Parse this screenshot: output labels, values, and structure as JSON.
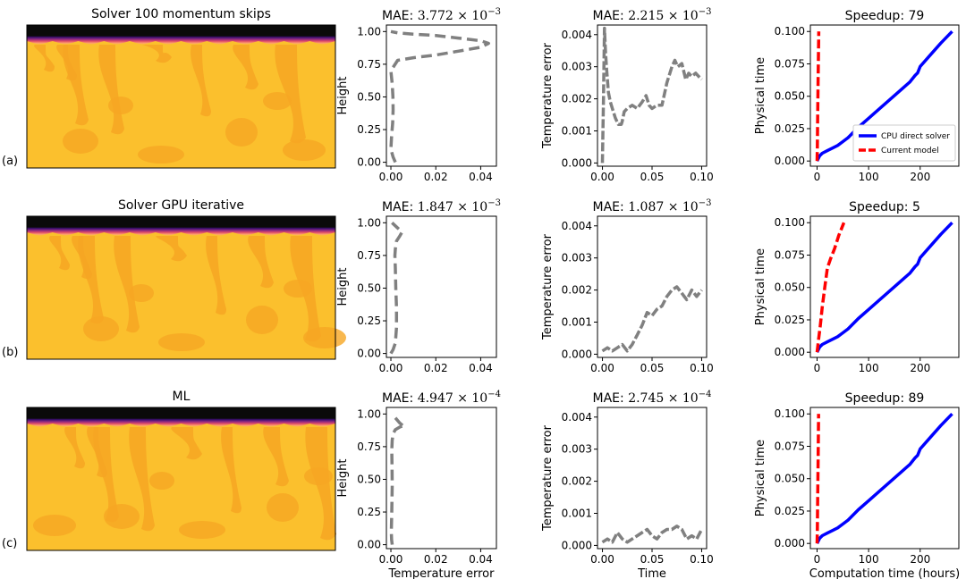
{
  "rows": [
    {
      "label": "(a)",
      "sim_title": "Solver 100 momentum skips",
      "height_panel": {
        "mae_prefix": "MAE: ",
        "mae_value": "3.772 × 10",
        "mae_exp": "−3"
      },
      "time_panel": {
        "mae_prefix": "MAE: ",
        "mae_value": "2.215 × 10",
        "mae_exp": "−3"
      },
      "speed_panel": {
        "title": "Speedup: 79"
      }
    },
    {
      "label": "(b)",
      "sim_title": "Solver GPU iterative",
      "height_panel": {
        "mae_prefix": "MAE: ",
        "mae_value": "1.847 × 10",
        "mae_exp": "−3"
      },
      "time_panel": {
        "mae_prefix": "MAE: ",
        "mae_value": "1.087 × 10",
        "mae_exp": "−3"
      },
      "speed_panel": {
        "title": "Speedup: 5"
      }
    },
    {
      "label": "(c)",
      "sim_title": "ML",
      "height_panel": {
        "mae_prefix": "MAE: ",
        "mae_value": "4.947 × 10",
        "mae_exp": "−4"
      },
      "time_panel": {
        "mae_prefix": "MAE: ",
        "mae_value": "2.745 × 10",
        "mae_exp": "−4"
      },
      "speed_panel": {
        "title": "Speedup: 89"
      }
    }
  ],
  "axis_labels": {
    "height_ylabel": "Height",
    "height_xlabel": "Temperature error",
    "time_ylabel": "Temperature error",
    "time_xlabel": "Time",
    "speed_ylabel": "Physical time",
    "speed_xlabel": "Computation time (hours)"
  },
  "legend": {
    "cpu": "CPU direct solver",
    "model": "Current model"
  },
  "colors": {
    "field_base": "#fbc02d",
    "field_plume": "#f6a623",
    "lid": "#0a0a0a",
    "error_curve": "#808080",
    "cpu_curve": "#0000ff",
    "model_curve": "#ff0000"
  },
  "chart_data": [
    {
      "type": "line",
      "panel": "height-profile",
      "xlabel": "Temperature error",
      "ylabel": "Height",
      "xlim": [
        -0.002,
        0.047
      ],
      "ylim": [
        -0.03,
        1.05
      ],
      "xticks": [
        "0.00",
        "0.02",
        "0.04"
      ],
      "xtick_values": [
        0,
        0.02,
        0.04
      ],
      "yticks": [
        "0.00",
        "0.25",
        "0.50",
        "0.75",
        "1.00"
      ],
      "ytick_values": [
        0,
        0.25,
        0.5,
        0.75,
        1.0
      ],
      "series": [
        {
          "row": "(a)",
          "x": [
            0.002,
            0.001,
            0,
            0.0003,
            0.0008,
            0.001,
            0.0009,
            0.0006,
            0,
            0.003,
            0.01,
            0.02,
            0.03,
            0.04,
            0.0435,
            0.04,
            0.03,
            0.02,
            0.01,
            0.003,
            0
          ],
          "y": [
            0,
            0.04,
            0.1,
            0.2,
            0.3,
            0.4,
            0.5,
            0.6,
            0.7,
            0.78,
            0.8,
            0.82,
            0.85,
            0.88,
            0.91,
            0.93,
            0.95,
            0.97,
            0.98,
            0.99,
            1.0
          ]
        },
        {
          "row": "(b)",
          "x": [
            0,
            0.001,
            0.002,
            0.0025,
            0.0025,
            0.0022,
            0.002,
            0.0018,
            0.002,
            0.0025,
            0.004,
            0.005,
            0.003,
            0.0005
          ],
          "y": [
            0,
            0.03,
            0.08,
            0.2,
            0.35,
            0.5,
            0.65,
            0.75,
            0.8,
            0.86,
            0.9,
            0.93,
            0.96,
            1.0
          ]
        },
        {
          "row": "(c)",
          "x": [
            0.0006,
            0.0003,
            0.0002,
            0.0004,
            0.0006,
            0.0005,
            0.0004,
            0.0006,
            0.001,
            0.002,
            0.004,
            0.0055,
            0.006,
            0.004,
            0.002
          ],
          "y": [
            0,
            0.04,
            0.1,
            0.25,
            0.45,
            0.6,
            0.72,
            0.8,
            0.85,
            0.88,
            0.9,
            0.91,
            0.9,
            0.93,
            0.97
          ]
        }
      ]
    },
    {
      "type": "line",
      "panel": "error-vs-time",
      "xlabel": "Time",
      "ylabel": "Temperature error",
      "xlim": [
        -0.005,
        0.105
      ],
      "ylim": [
        -0.0001,
        0.0043
      ],
      "xticks": [
        "0.00",
        "0.05",
        "0.10"
      ],
      "xtick_values": [
        0,
        0.05,
        0.1
      ],
      "yticks": [
        "0.000",
        "0.001",
        "0.002",
        "0.003",
        "0.004"
      ],
      "ytick_values": [
        0,
        0.001,
        0.002,
        0.003,
        0.004
      ],
      "series": [
        {
          "row": "(a)",
          "x": [
            0,
            0.0005,
            0.001,
            0.0015,
            0.002,
            0.003,
            0.004,
            0.006,
            0.008,
            0.01,
            0.013,
            0.016,
            0.019,
            0.02,
            0.022,
            0.025,
            0.03,
            0.035,
            0.04,
            0.044,
            0.047,
            0.05,
            0.055,
            0.06,
            0.065,
            0.07,
            0.073,
            0.076,
            0.08,
            0.084,
            0.087,
            0.09,
            0.094,
            0.097,
            0.1
          ],
          "y": [
            0,
            0.001,
            0.002,
            0.003,
            0.0042,
            0.0035,
            0.003,
            0.0022,
            0.0019,
            0.0017,
            0.0014,
            0.0012,
            0.0012,
            0.0013,
            0.0016,
            0.0017,
            0.0018,
            0.0017,
            0.0019,
            0.0021,
            0.0018,
            0.0017,
            0.0018,
            0.0018,
            0.0025,
            0.003,
            0.0032,
            0.003,
            0.0031,
            0.0026,
            0.0028,
            0.0027,
            0.0028,
            0.0027,
            0.0026
          ]
        },
        {
          "row": "(b)",
          "x": [
            0,
            0.005,
            0.01,
            0.015,
            0.02,
            0.025,
            0.03,
            0.035,
            0.04,
            0.045,
            0.05,
            0.055,
            0.06,
            0.065,
            0.07,
            0.075,
            0.08,
            0.085,
            0.09,
            0.095,
            0.1
          ],
          "y": [
            0.0001,
            0.0002,
            0.0001,
            0.0002,
            0.0003,
            0.0001,
            0.0003,
            0.0006,
            0.0009,
            0.0013,
            0.0012,
            0.0014,
            0.0015,
            0.0018,
            0.002,
            0.0021,
            0.0019,
            0.0017,
            0.002,
            0.0018,
            0.002
          ]
        },
        {
          "row": "(c)",
          "x": [
            0,
            0.005,
            0.01,
            0.015,
            0.02,
            0.025,
            0.03,
            0.035,
            0.04,
            0.045,
            0.05,
            0.055,
            0.06,
            0.065,
            0.07,
            0.075,
            0.08,
            0.085,
            0.09,
            0.095,
            0.1
          ],
          "y": [
            0.0001,
            0.0002,
            0.0001,
            0.0004,
            0.0002,
            0.0001,
            0.0002,
            0.0003,
            0.0004,
            0.0005,
            0.0003,
            0.0002,
            0.0004,
            0.0005,
            0.0005,
            0.0006,
            0.0005,
            0.0002,
            0.0003,
            0.0002,
            0.0005
          ]
        }
      ]
    },
    {
      "type": "line",
      "panel": "speedup",
      "xlabel": "Computation time (hours)",
      "ylabel": "Physical time",
      "xlim": [
        -13,
        275
      ],
      "ylim": [
        -0.004,
        0.105
      ],
      "xticks": [
        "0",
        "100",
        "200"
      ],
      "xtick_values": [
        0,
        100,
        200
      ],
      "yticks": [
        "0.000",
        "0.025",
        "0.050",
        "0.075",
        "0.100"
      ],
      "ytick_values": [
        0,
        0.025,
        0.05,
        0.075,
        0.1
      ],
      "series": [
        {
          "name": "CPU direct solver",
          "x": [
            0,
            5,
            10,
            20,
            30,
            40,
            50,
            60,
            80,
            100,
            120,
            140,
            160,
            180,
            190,
            195,
            200,
            220,
            240,
            262
          ],
          "y": [
            0,
            0.004,
            0.006,
            0.008,
            0.01,
            0.012,
            0.015,
            0.018,
            0.026,
            0.033,
            0.04,
            0.047,
            0.054,
            0.061,
            0.066,
            0.068,
            0.073,
            0.082,
            0.091,
            0.1
          ]
        },
        {
          "row": "(a)",
          "name": "Current model",
          "x": [
            0,
            0.5,
            1,
            2,
            3.3
          ],
          "y": [
            0,
            0.01,
            0.03,
            0.06,
            0.1
          ]
        },
        {
          "row": "(b)",
          "name": "Current model",
          "x": [
            0,
            3,
            6,
            10,
            15,
            20,
            26,
            34,
            42,
            52
          ],
          "y": [
            0,
            0.01,
            0.02,
            0.035,
            0.05,
            0.065,
            0.072,
            0.08,
            0.09,
            0.1
          ]
        },
        {
          "row": "(c)",
          "name": "Current model",
          "x": [
            0,
            0.5,
            1,
            2,
            2.9
          ],
          "y": [
            0,
            0.01,
            0.03,
            0.06,
            0.1
          ]
        }
      ]
    }
  ]
}
